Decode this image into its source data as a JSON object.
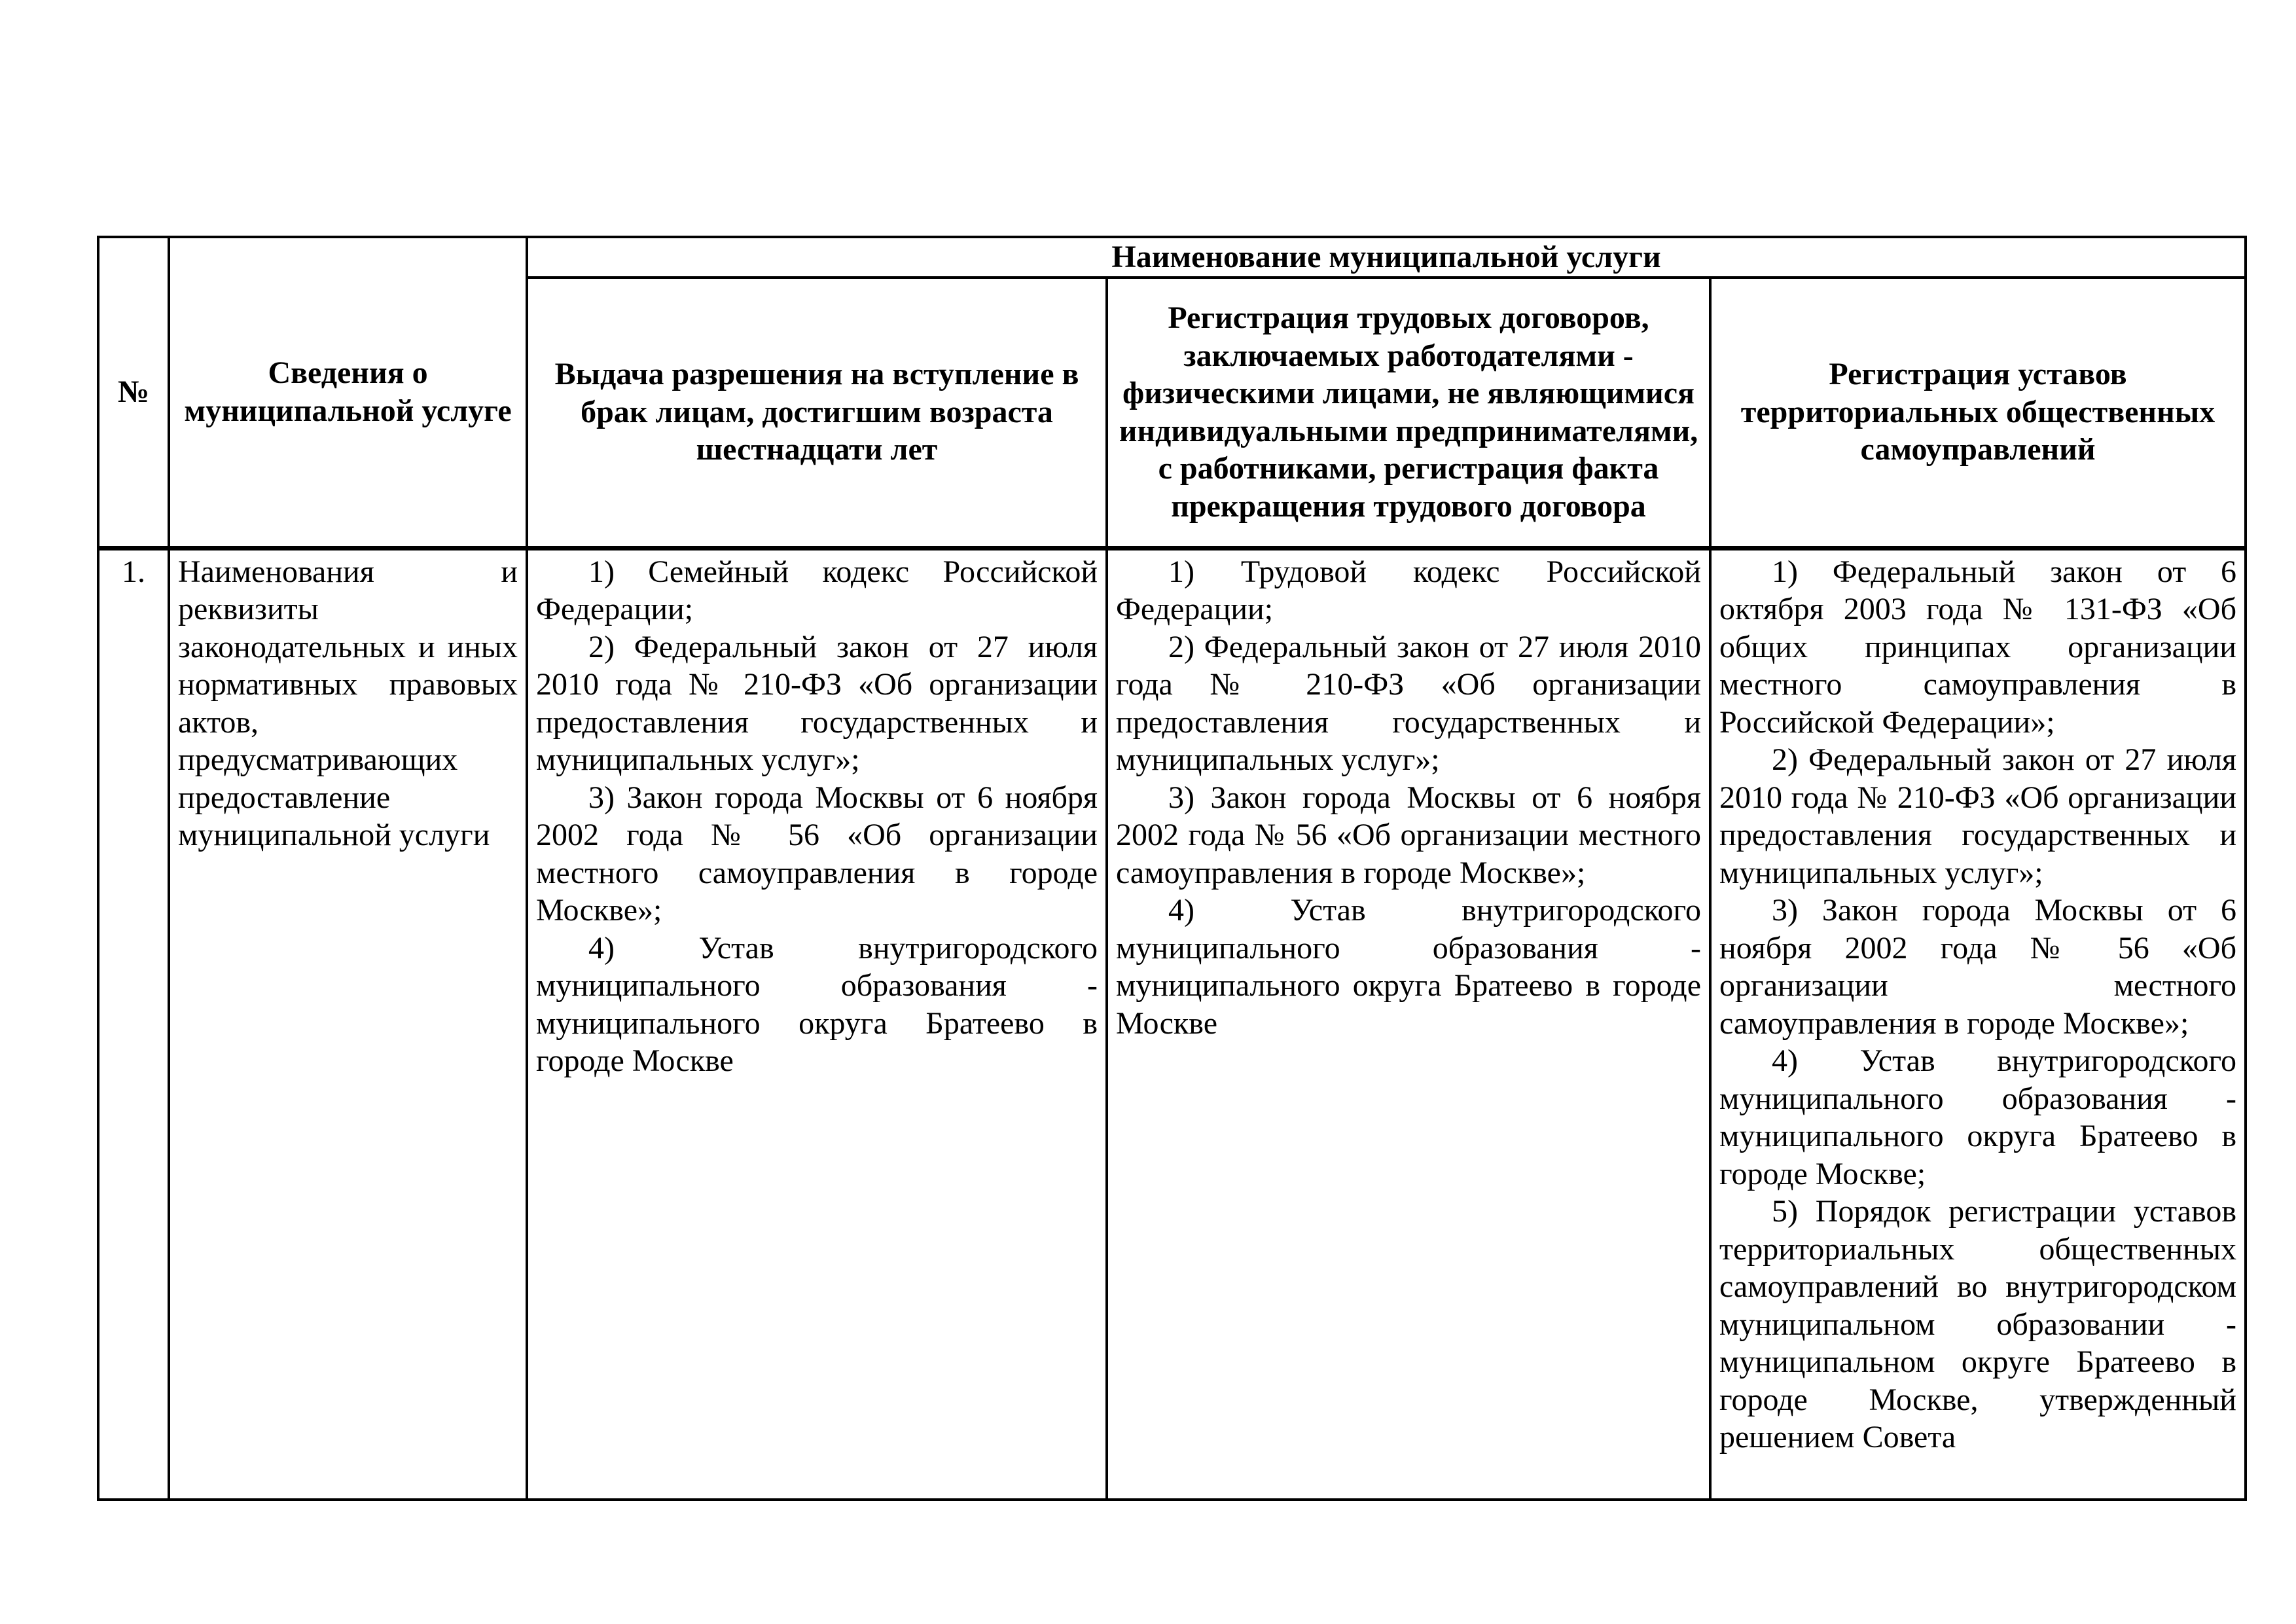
{
  "table": {
    "header": {
      "number": "№",
      "info": "Сведения о муниципальной услуге",
      "group": "Наименование муниципальной услуги",
      "services": [
        "Выдача разрешения на вступление в брак лицам, достигшим возраста шестнадцати лет",
        "Регистрация трудовых договоров, заключаемых работодателями - физическими лицами, не являющимися индивидуальными предпринимателями, с работниками, регистрация факта прекращения трудового договора",
        "Регистрация уставов территориальных общественных самоуправлений"
      ]
    },
    "rows": [
      {
        "number": "1.",
        "info": "Наименования и реквизиты законодательных и иных нормативных правовых актов, предусматривающих предоставление муниципальной услуги",
        "cells": [
          [
            "1) Семейный кодекс Российской Федерации;",
            "2) Федеральный закон от 27 июля 2010 года № 210-ФЗ «Об организации предоставления государственных и муниципальных услуг»;",
            "3) Закон города Москвы от 6 ноября 2002 года № 56 «Об организации местного самоуправления в городе Москве»;",
            "4) Устав внутригородского муниципального образования - муниципального округа Братеево в городе Москве"
          ],
          [
            "1) Трудовой кодекс Российской Федерации;",
            "2) Федеральный закон от 27 июля 2010 года № 210-ФЗ «Об организации предоставления государственных и муниципальных услуг»;",
            "3) Закон города Москвы от 6 ноября 2002 года № 56 «Об организации местного самоуправления в городе Москве»;",
            "4) Устав внутригородского муниципального образования - муниципального округа Братеево в городе Москве"
          ],
          [
            "1) Федеральный закон от 6 октября 2003 года № 131-ФЗ «Об общих принципах организации местного самоуправления в Российской Федерации»;",
            "2) Федеральный закон от 27 июля 2010 года № 210-ФЗ «Об организации предоставления государственных и муниципальных услуг»;",
            "3) Закон города Москвы от 6 ноября 2002 года № 56 «Об организации местного самоуправления в городе Москве»;",
            "4) Устав внутригородского муниципального образования - муниципального округа Братеево в городе Москве;",
            "5) Порядок регистрации уставов территориальных общественных самоуправлений во внутригородском муниципальном образовании - муниципальном округе Братеево в городе Москве, утвержденный решением Совета"
          ]
        ]
      }
    ]
  }
}
